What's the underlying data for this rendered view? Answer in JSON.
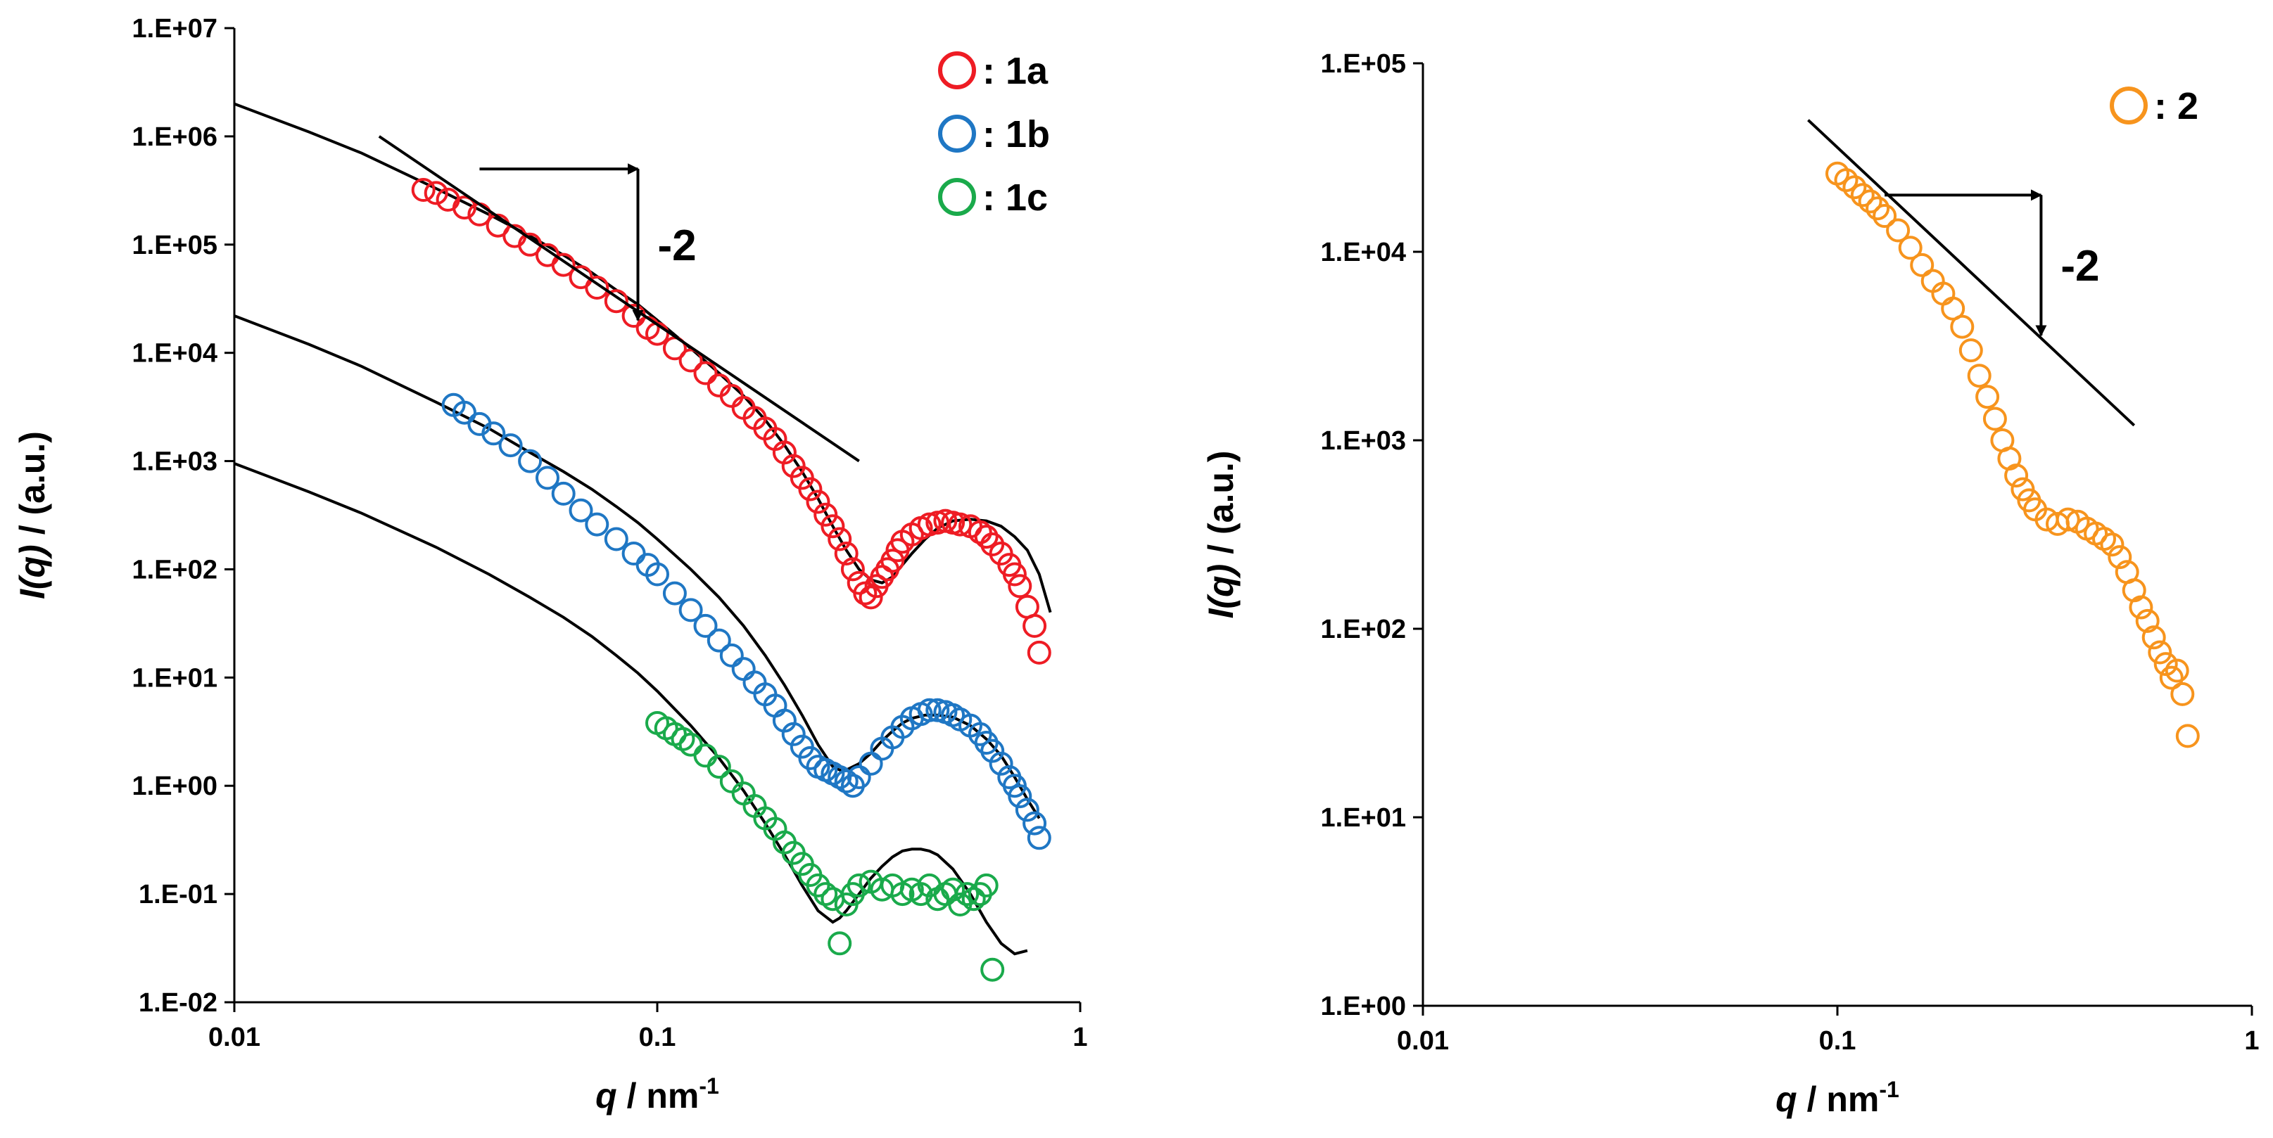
{
  "chart_data": [
    {
      "type": "scatter",
      "title": "",
      "xlabel_italic": "q",
      "xlabel_rest": " / nm",
      "xlabel_sup": "-1",
      "ylabel_italic": "I(q)",
      "ylabel_rest": " / (a.u.)",
      "xscale": "log",
      "yscale": "log",
      "xlim": [
        0.01,
        1
      ],
      "ylim": [
        0.01,
        10000000
      ],
      "x_tick_values": [
        0.01,
        0.1,
        1
      ],
      "x_tick_labels": [
        "0.01",
        "0.1",
        "1"
      ],
      "y_tick_values": [
        0.01,
        0.1,
        1,
        10,
        100,
        1000,
        10000,
        100000,
        1000000,
        10000000
      ],
      "y_tick_labels": [
        "1.E-02",
        "1.E-01",
        "1.E+00",
        "1.E+01",
        "1.E+02",
        "1.E+03",
        "1.E+04",
        "1.E+05",
        "1.E+06",
        "1.E+07"
      ],
      "legend_position": "top-right",
      "series": [
        {
          "name": ": 1a",
          "color": "#ee1c24",
          "marker": "open-circle",
          "x": [
            0.028,
            0.03,
            0.032,
            0.035,
            0.038,
            0.042,
            0.046,
            0.05,
            0.055,
            0.06,
            0.066,
            0.072,
            0.08,
            0.088,
            0.095,
            0.1,
            0.11,
            0.12,
            0.13,
            0.14,
            0.15,
            0.16,
            0.17,
            0.18,
            0.19,
            0.2,
            0.21,
            0.22,
            0.23,
            0.24,
            0.25,
            0.26,
            0.27,
            0.28,
            0.29,
            0.3,
            0.31,
            0.32,
            0.33,
            0.34,
            0.35,
            0.36,
            0.37,
            0.38,
            0.4,
            0.42,
            0.44,
            0.46,
            0.48,
            0.5,
            0.52,
            0.55,
            0.58,
            0.6,
            0.62,
            0.65,
            0.68,
            0.7,
            0.72,
            0.75,
            0.78,
            0.8
          ],
          "y": [
            320000,
            300000,
            260000,
            220000,
            190000,
            150000,
            120000,
            100000,
            80000,
            65000,
            50000,
            40000,
            30000,
            22000,
            17000,
            15000,
            11000,
            8500,
            6500,
            5000,
            4000,
            3100,
            2500,
            2000,
            1600,
            1200,
            900,
            700,
            550,
            420,
            320,
            250,
            190,
            140,
            100,
            75,
            60,
            55,
            70,
            85,
            100,
            120,
            150,
            180,
            210,
            240,
            260,
            270,
            280,
            270,
            260,
            250,
            220,
            200,
            170,
            140,
            110,
            90,
            70,
            45,
            30,
            17
          ]
        },
        {
          "name": ": 1b",
          "color": "#1f77c4",
          "marker": "open-circle",
          "x": [
            0.033,
            0.035,
            0.038,
            0.041,
            0.045,
            0.05,
            0.055,
            0.06,
            0.066,
            0.072,
            0.08,
            0.088,
            0.095,
            0.1,
            0.11,
            0.12,
            0.13,
            0.14,
            0.15,
            0.16,
            0.17,
            0.18,
            0.19,
            0.2,
            0.21,
            0.22,
            0.23,
            0.24,
            0.25,
            0.26,
            0.27,
            0.28,
            0.29,
            0.3,
            0.32,
            0.34,
            0.36,
            0.38,
            0.4,
            0.42,
            0.44,
            0.46,
            0.48,
            0.5,
            0.52,
            0.55,
            0.58,
            0.6,
            0.62,
            0.65,
            0.68,
            0.7,
            0.72,
            0.75,
            0.78,
            0.8
          ],
          "y": [
            3300,
            2800,
            2200,
            1800,
            1400,
            1000,
            700,
            500,
            350,
            260,
            190,
            140,
            110,
            90,
            60,
            42,
            30,
            22,
            16,
            12,
            9,
            7,
            5.5,
            4,
            3,
            2.3,
            1.8,
            1.5,
            1.4,
            1.3,
            1.2,
            1.1,
            1.0,
            1.2,
            1.6,
            2.2,
            2.8,
            3.5,
            4.2,
            4.6,
            5,
            5,
            4.8,
            4.5,
            4.1,
            3.6,
            3,
            2.5,
            2.1,
            1.6,
            1.2,
            1,
            0.8,
            0.6,
            0.45,
            0.33
          ]
        },
        {
          "name": ": 1c",
          "color": "#1aaa4b",
          "marker": "open-circle",
          "x": [
            0.1,
            0.105,
            0.11,
            0.115,
            0.12,
            0.13,
            0.14,
            0.15,
            0.16,
            0.17,
            0.18,
            0.19,
            0.2,
            0.21,
            0.22,
            0.23,
            0.24,
            0.25,
            0.26,
            0.27,
            0.28,
            0.29,
            0.3,
            0.32,
            0.34,
            0.36,
            0.38,
            0.4,
            0.42,
            0.44,
            0.46,
            0.48,
            0.5,
            0.52,
            0.54,
            0.56,
            0.58,
            0.6,
            0.62
          ],
          "y": [
            3.8,
            3.4,
            3.0,
            2.7,
            2.4,
            1.9,
            1.5,
            1.1,
            0.85,
            0.65,
            0.5,
            0.4,
            0.3,
            0.24,
            0.19,
            0.15,
            0.12,
            0.1,
            0.09,
            0.035,
            0.08,
            0.1,
            0.12,
            0.13,
            0.11,
            0.12,
            0.1,
            0.11,
            0.1,
            0.12,
            0.09,
            0.1,
            0.11,
            0.08,
            0.1,
            0.09,
            0.1,
            0.12,
            0.02
          ]
        }
      ],
      "fit_curves": [
        {
          "name": "fit 1a",
          "color": "#000000",
          "x": [
            0.01,
            0.015,
            0.02,
            0.03,
            0.04,
            0.05,
            0.06,
            0.07,
            0.08,
            0.09,
            0.1,
            0.12,
            0.14,
            0.16,
            0.18,
            0.2,
            0.22,
            0.24,
            0.26,
            0.28,
            0.3,
            0.32,
            0.34,
            0.36,
            0.38,
            0.4,
            0.43,
            0.46,
            0.5,
            0.55,
            0.6,
            0.65,
            0.7,
            0.75,
            0.8,
            0.85
          ],
          "y": [
            2000000,
            1100000,
            700000,
            330000,
            190000,
            120000,
            80000,
            55000,
            38000,
            28000,
            20000,
            11000,
            6500,
            4000,
            2400,
            1400,
            800,
            450,
            250,
            150,
            100,
            80,
            75,
            85,
            110,
            140,
            190,
            240,
            280,
            290,
            280,
            250,
            200,
            150,
            90,
            40
          ]
        },
        {
          "name": "fit 1b",
          "color": "#000000",
          "x": [
            0.01,
            0.015,
            0.02,
            0.03,
            0.04,
            0.05,
            0.06,
            0.07,
            0.08,
            0.09,
            0.1,
            0.12,
            0.14,
            0.16,
            0.18,
            0.2,
            0.22,
            0.24,
            0.26,
            0.27,
            0.28,
            0.3,
            0.32,
            0.34,
            0.36,
            0.38,
            0.4,
            0.43,
            0.46,
            0.5,
            0.55,
            0.6,
            0.65,
            0.7,
            0.75,
            0.8
          ],
          "y": [
            22000,
            12000,
            7500,
            3500,
            2000,
            1200,
            800,
            550,
            380,
            270,
            190,
            100,
            55,
            30,
            16,
            8.5,
            4.5,
            2.4,
            1.5,
            1.4,
            1.4,
            1.6,
            2.0,
            2.6,
            3.2,
            3.8,
            4.2,
            4.5,
            4.5,
            4.3,
            3.6,
            2.7,
            1.9,
            1.2,
            0.75,
            0.5
          ]
        },
        {
          "name": "fit 1c",
          "color": "#000000",
          "x": [
            0.01,
            0.015,
            0.02,
            0.03,
            0.04,
            0.05,
            0.06,
            0.07,
            0.08,
            0.09,
            0.1,
            0.12,
            0.14,
            0.16,
            0.18,
            0.2,
            0.22,
            0.24,
            0.26,
            0.27,
            0.28,
            0.3,
            0.32,
            0.34,
            0.36,
            0.38,
            0.4,
            0.42,
            0.44,
            0.46,
            0.5,
            0.55,
            0.6,
            0.65,
            0.7,
            0.75
          ],
          "y": [
            950,
            520,
            330,
            160,
            90,
            55,
            36,
            24,
            16,
            11,
            7.5,
            3.6,
            1.8,
            0.9,
            0.45,
            0.23,
            0.12,
            0.07,
            0.055,
            0.06,
            0.07,
            0.1,
            0.14,
            0.18,
            0.22,
            0.25,
            0.26,
            0.26,
            0.25,
            0.23,
            0.17,
            0.1,
            0.055,
            0.035,
            0.028,
            0.03
          ]
        }
      ],
      "slope_annotation": {
        "label": "-2",
        "line_x": [
          0.022,
          0.3
        ],
        "line_y": [
          1000000,
          1000
        ],
        "arrow_h_x": [
          0.038,
          0.09
        ],
        "arrow_h_y": 500000,
        "arrow_v_x": 0.09,
        "arrow_v_y": [
          500000,
          20000
        ]
      }
    },
    {
      "type": "scatter",
      "title": "",
      "xlabel_italic": "q",
      "xlabel_rest": " / nm",
      "xlabel_sup": "-1",
      "ylabel_italic": "I(q)",
      "ylabel_rest": " / (a.u.)",
      "xscale": "log",
      "yscale": "log",
      "xlim": [
        0.01,
        1
      ],
      "ylim": [
        1,
        100000
      ],
      "x_tick_values": [
        0.01,
        0.1,
        1
      ],
      "x_tick_labels": [
        "0.01",
        "0.1",
        "1"
      ],
      "y_tick_values": [
        1,
        10,
        100,
        1000,
        10000,
        100000
      ],
      "y_tick_labels": [
        "1.E+00",
        "1.E+01",
        "1.E+02",
        "1.E+03",
        "1.E+04",
        "1.E+05"
      ],
      "legend_position": "top-right",
      "series": [
        {
          "name": ": 2",
          "color": "#f7941d",
          "marker": "open-circle",
          "x": [
            0.1,
            0.105,
            0.11,
            0.115,
            0.12,
            0.125,
            0.13,
            0.14,
            0.15,
            0.16,
            0.17,
            0.18,
            0.19,
            0.2,
            0.21,
            0.22,
            0.23,
            0.24,
            0.25,
            0.26,
            0.27,
            0.28,
            0.29,
            0.3,
            0.32,
            0.34,
            0.36,
            0.38,
            0.4,
            0.42,
            0.44,
            0.46,
            0.48,
            0.5,
            0.52,
            0.54,
            0.56,
            0.58,
            0.6,
            0.62,
            0.64,
            0.66,
            0.68,
            0.7
          ],
          "y": [
            26000,
            24000,
            22000,
            20000,
            18500,
            17000,
            15500,
            13000,
            10500,
            8500,
            7000,
            6000,
            5000,
            4000,
            3000,
            2200,
            1700,
            1300,
            1000,
            800,
            650,
            550,
            480,
            430,
            380,
            360,
            380,
            370,
            340,
            320,
            300,
            280,
            240,
            200,
            160,
            130,
            110,
            90,
            75,
            65,
            55,
            60,
            45,
            27
          ]
        }
      ],
      "fit_curves": [],
      "slope_annotation": {
        "label": "-2",
        "line_x": [
          0.085,
          0.52
        ],
        "line_y": [
          50000,
          1200
        ],
        "arrow_h_x": [
          0.13,
          0.31
        ],
        "arrow_h_y": 20000,
        "arrow_v_x": 0.31,
        "arrow_v_y": [
          20000,
          3600
        ]
      }
    }
  ]
}
